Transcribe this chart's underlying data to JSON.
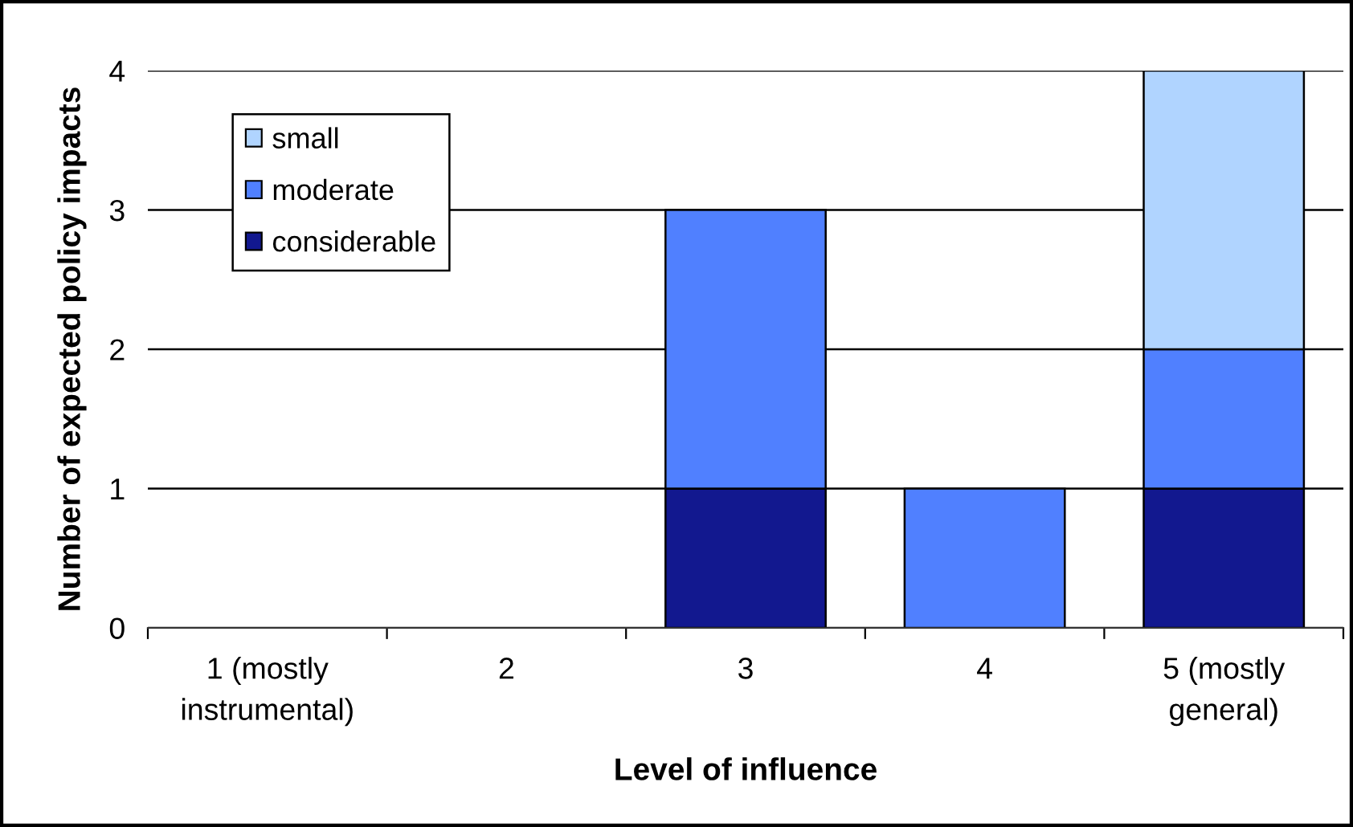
{
  "chart_data": {
    "type": "bar",
    "stacked": true,
    "xlabel": "Level of influence",
    "ylabel": "Number of expected policy impacts",
    "categories": [
      "1 (mostly\ninstrumental)",
      "2",
      "3",
      "4",
      "5 (mostly\ngeneral)"
    ],
    "series": [
      {
        "name": "considerable",
        "color": "#12188f",
        "values": [
          0,
          0,
          1,
          0,
          1
        ]
      },
      {
        "name": "moderate",
        "color": "#5080ff",
        "values": [
          0,
          0,
          2,
          1,
          1
        ]
      },
      {
        "name": "small",
        "color": "#b0d4ff",
        "values": [
          0,
          0,
          0,
          0,
          2
        ]
      }
    ],
    "ylim": [
      0,
      4
    ],
    "yticks": [
      0,
      1,
      2,
      3,
      4
    ],
    "grid": "y",
    "legend": "top left"
  }
}
